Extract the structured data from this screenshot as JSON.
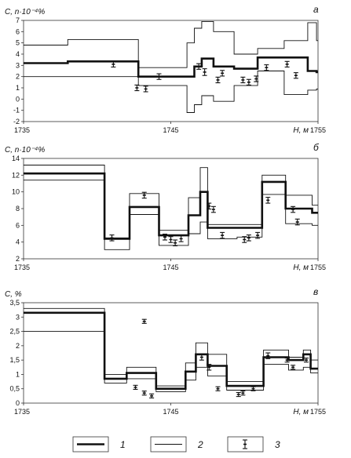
{
  "chart_data": [
    {
      "type": "line",
      "panel_label": "а",
      "ylabel": "C, n·10⁻⁴%",
      "xlabel": "H, м",
      "xlim": [
        1735,
        1755
      ],
      "ylim": [
        -2,
        7
      ],
      "x_ticks": [
        "1735",
        "1745",
        "1755"
      ],
      "y_ticks": [
        "-2",
        "-1",
        "0",
        "1",
        "2",
        "3",
        "4",
        "5",
        "6",
        "7"
      ],
      "series": [
        {
          "name": "1",
          "style": "thick",
          "x": [
            1735,
            1738,
            1738,
            1742.8,
            1742.8,
            1746.1,
            1746.1,
            1746.6,
            1746.6,
            1747.1,
            1747.1,
            1747.9,
            1747.9,
            1749.3,
            1749.3,
            1750.9,
            1750.9,
            1752.7,
            1752.7,
            1754.3,
            1754.3,
            1754.9,
            1754.9,
            1755
          ],
          "y": [
            3.2,
            3.2,
            3.35,
            3.35,
            2.0,
            2.0,
            2.0,
            2.0,
            2.9,
            2.9,
            3.6,
            3.6,
            2.9,
            2.9,
            2.7,
            2.7,
            3.7,
            3.7,
            3.7,
            3.7,
            2.5,
            2.5,
            2.4,
            2.4
          ]
        },
        {
          "name": "2",
          "style": "thin",
          "x": [
            1735,
            1738,
            1738,
            1742.8,
            1742.8,
            1746.1,
            1746.1,
            1746.6,
            1746.6,
            1747.1,
            1747.1,
            1747.9,
            1747.9,
            1749.3,
            1749.3,
            1750.9,
            1750.9,
            1752.7,
            1752.7,
            1754.3,
            1754.3,
            1754.9,
            1754.9,
            1755
          ],
          "y": [
            4.8,
            4.8,
            5.3,
            5.3,
            2.8,
            2.8,
            5.0,
            5.0,
            6.3,
            6.3,
            6.9,
            6.9,
            6.0,
            6.0,
            4.0,
            4.0,
            4.5,
            4.5,
            5.2,
            5.2,
            6.8,
            6.8,
            5.2,
            5.2
          ]
        },
        {
          "name": "2",
          "style": "thin",
          "x": [
            1735,
            1738,
            1738,
            1742.8,
            1742.8,
            1746.1,
            1746.1,
            1746.6,
            1746.6,
            1747.1,
            1747.1,
            1747.9,
            1747.9,
            1749.3,
            1749.3,
            1750.9,
            1750.9,
            1752.7,
            1752.7,
            1754.3,
            1754.3,
            1754.9,
            1754.9,
            1755
          ],
          "y": [
            2.0,
            2.0,
            2.0,
            2.0,
            1.2,
            1.2,
            -1.2,
            -1.2,
            -0.5,
            -0.5,
            0.3,
            0.3,
            -0.2,
            -0.2,
            1.2,
            1.2,
            2.5,
            2.5,
            0.4,
            0.4,
            0.8,
            0.8,
            0.9,
            0.9
          ]
        }
      ],
      "points": [
        {
          "x": 1741.1,
          "y": 3.1,
          "err": 0.25
        },
        {
          "x": 1742.7,
          "y": 1.0,
          "err": 0.25
        },
        {
          "x": 1743.3,
          "y": 0.9,
          "err": 0.25
        },
        {
          "x": 1744.2,
          "y": 2.0,
          "err": 0.25
        },
        {
          "x": 1746.9,
          "y": 2.9,
          "err": 0.25
        },
        {
          "x": 1747.3,
          "y": 2.4,
          "err": 0.3
        },
        {
          "x": 1748.2,
          "y": 1.7,
          "err": 0.25
        },
        {
          "x": 1748.5,
          "y": 2.3,
          "err": 0.25
        },
        {
          "x": 1749.9,
          "y": 1.7,
          "err": 0.25
        },
        {
          "x": 1750.3,
          "y": 1.5,
          "err": 0.25
        },
        {
          "x": 1750.8,
          "y": 1.8,
          "err": 0.25
        },
        {
          "x": 1751.5,
          "y": 2.8,
          "err": 0.25
        },
        {
          "x": 1752.9,
          "y": 3.1,
          "err": 0.25
        },
        {
          "x": 1753.5,
          "y": 2.1,
          "err": 0.25
        }
      ]
    },
    {
      "type": "line",
      "panel_label": "б",
      "ylabel": "C, n·10⁻⁴%",
      "xlabel": "H, м",
      "xlim": [
        1735,
        1755
      ],
      "ylim": [
        2,
        14
      ],
      "x_ticks": [
        "1735",
        "1745",
        "1755"
      ],
      "y_ticks": [
        "2",
        "4",
        "6",
        "8",
        "10",
        "12",
        "14"
      ],
      "series": [
        {
          "name": "1",
          "style": "thick",
          "x": [
            1735,
            1740.5,
            1740.5,
            1742.2,
            1742.2,
            1744.2,
            1744.2,
            1746.2,
            1746.2,
            1747.0,
            1747.0,
            1747.5,
            1747.5,
            1749.5,
            1749.5,
            1751.2,
            1751.2,
            1752.8,
            1752.8,
            1754.6,
            1754.6,
            1755
          ],
          "y": [
            12.2,
            12.2,
            4.4,
            4.4,
            8.2,
            8.2,
            4.8,
            4.8,
            7.2,
            7.2,
            10.0,
            10.0,
            5.7,
            5.7,
            5.7,
            5.7,
            11.2,
            11.2,
            8.0,
            8.0,
            7.5,
            7.5
          ]
        },
        {
          "name": "2",
          "style": "thin",
          "x": [
            1735,
            1740.5,
            1740.5,
            1742.2,
            1742.2,
            1744.2,
            1744.2,
            1746.2,
            1746.2,
            1747.0,
            1747.0,
            1747.5,
            1747.5,
            1749.5,
            1749.5,
            1751.2,
            1751.2,
            1752.8,
            1752.8,
            1754.6,
            1754.6,
            1755
          ],
          "y": [
            13.2,
            13.2,
            4.5,
            4.5,
            9.8,
            9.8,
            5.4,
            5.4,
            9.3,
            9.3,
            12.9,
            12.9,
            6.1,
            6.1,
            6.1,
            6.1,
            12.0,
            12.0,
            9.6,
            9.6,
            8.4,
            8.4
          ]
        },
        {
          "name": "2",
          "style": "thin",
          "x": [
            1735,
            1740.5,
            1740.5,
            1742.2,
            1742.2,
            1744.2,
            1744.2,
            1746.2,
            1746.2,
            1747.0,
            1747.0,
            1747.5,
            1747.5,
            1749.5,
            1749.5,
            1751.2,
            1751.2,
            1752.8,
            1752.8,
            1754.6,
            1754.6,
            1755
          ],
          "y": [
            11.4,
            11.4,
            3.1,
            3.1,
            7.3,
            7.3,
            3.6,
            3.6,
            5.0,
            5.0,
            6.4,
            6.4,
            4.4,
            4.4,
            4.6,
            4.6,
            9.7,
            9.7,
            6.2,
            6.2,
            6.0,
            6.0
          ]
        }
      ],
      "points": [
        {
          "x": 1741.0,
          "y": 4.5,
          "err": 0.35
        },
        {
          "x": 1743.2,
          "y": 9.6,
          "err": 0.35
        },
        {
          "x": 1744.6,
          "y": 4.6,
          "err": 0.35
        },
        {
          "x": 1745.0,
          "y": 4.3,
          "err": 0.35
        },
        {
          "x": 1745.3,
          "y": 3.9,
          "err": 0.35
        },
        {
          "x": 1745.7,
          "y": 4.4,
          "err": 0.35
        },
        {
          "x": 1747.6,
          "y": 8.3,
          "err": 0.35
        },
        {
          "x": 1747.9,
          "y": 7.9,
          "err": 0.35
        },
        {
          "x": 1748.5,
          "y": 4.8,
          "err": 0.35
        },
        {
          "x": 1750.0,
          "y": 4.3,
          "err": 0.35
        },
        {
          "x": 1750.3,
          "y": 4.5,
          "err": 0.35
        },
        {
          "x": 1750.9,
          "y": 4.8,
          "err": 0.35
        },
        {
          "x": 1751.6,
          "y": 9.0,
          "err": 0.35
        },
        {
          "x": 1753.3,
          "y": 7.9,
          "err": 0.35
        },
        {
          "x": 1753.6,
          "y": 6.4,
          "err": 0.35
        }
      ]
    },
    {
      "type": "line",
      "panel_label": "в",
      "ylabel": "C, %",
      "xlabel": "H, м",
      "xlim": [
        1735,
        1755
      ],
      "ylim": [
        0,
        3.5
      ],
      "x_ticks": [
        "1735",
        "1745",
        "1755"
      ],
      "y_ticks": [
        "0",
        "0,5",
        "1",
        "1,5",
        "2",
        "2,5",
        "3",
        "3,5"
      ],
      "series": [
        {
          "name": "1",
          "style": "thick",
          "x": [
            1735,
            1740.5,
            1740.5,
            1742.0,
            1742.0,
            1744.0,
            1744.0,
            1746.0,
            1746.0,
            1746.7,
            1746.7,
            1747.5,
            1747.5,
            1748.8,
            1748.8,
            1751.3,
            1751.3,
            1753.0,
            1753.0,
            1754.0,
            1754.0,
            1754.5,
            1754.5,
            1755
          ],
          "y": [
            3.15,
            3.15,
            0.85,
            0.85,
            1.05,
            1.05,
            0.5,
            0.5,
            1.1,
            1.1,
            1.7,
            1.7,
            1.3,
            1.3,
            0.6,
            0.6,
            1.6,
            1.6,
            1.5,
            1.5,
            1.7,
            1.7,
            1.2,
            1.2
          ]
        },
        {
          "name": "2",
          "style": "thin",
          "x": [
            1735,
            1740.5,
            1740.5,
            1742.0,
            1742.0,
            1744.0,
            1744.0,
            1746.0,
            1746.0,
            1746.7,
            1746.7,
            1747.5,
            1747.5,
            1748.8,
            1748.8,
            1751.3,
            1751.3,
            1753.0,
            1753.0,
            1754.0,
            1754.0,
            1754.5,
            1754.5,
            1755
          ],
          "y": [
            3.3,
            3.3,
            1.0,
            1.0,
            1.25,
            1.25,
            0.6,
            0.6,
            1.4,
            1.4,
            2.1,
            2.1,
            1.7,
            1.7,
            0.75,
            0.75,
            1.85,
            1.85,
            1.6,
            1.6,
            1.85,
            1.85,
            1.5,
            1.5
          ]
        },
        {
          "name": "2",
          "style": "thin",
          "x": [
            1735,
            1740.5,
            1740.5,
            1742.0,
            1742.0,
            1744.0,
            1744.0,
            1746.0,
            1746.0,
            1746.7,
            1746.7,
            1747.5,
            1747.5,
            1748.8,
            1748.8,
            1751.3,
            1751.3,
            1753.0,
            1753.0,
            1754.0,
            1754.0,
            1754.5,
            1754.5,
            1755
          ],
          "y": [
            2.5,
            2.5,
            0.7,
            0.7,
            0.85,
            0.85,
            0.4,
            0.4,
            0.8,
            0.8,
            1.25,
            1.25,
            0.95,
            0.95,
            0.45,
            0.45,
            1.35,
            1.35,
            1.15,
            1.15,
            1.25,
            1.25,
            1.05,
            1.05
          ]
        }
      ],
      "points": [
        {
          "x": 1743.2,
          "y": 2.85,
          "err": 0.07
        },
        {
          "x": 1742.6,
          "y": 0.55,
          "err": 0.07
        },
        {
          "x": 1743.2,
          "y": 0.35,
          "err": 0.07
        },
        {
          "x": 1743.7,
          "y": 0.25,
          "err": 0.07
        },
        {
          "x": 1747.1,
          "y": 1.6,
          "err": 0.1
        },
        {
          "x": 1747.6,
          "y": 1.25,
          "err": 0.1
        },
        {
          "x": 1748.2,
          "y": 0.5,
          "err": 0.07
        },
        {
          "x": 1749.6,
          "y": 0.3,
          "err": 0.07
        },
        {
          "x": 1749.9,
          "y": 0.35,
          "err": 0.07
        },
        {
          "x": 1750.6,
          "y": 0.5,
          "err": 0.07
        },
        {
          "x": 1751.6,
          "y": 1.65,
          "err": 0.1
        },
        {
          "x": 1752.9,
          "y": 1.5,
          "err": 0.07
        },
        {
          "x": 1753.3,
          "y": 1.25,
          "err": 0.07
        },
        {
          "x": 1754.2,
          "y": 1.5,
          "err": 0.07
        }
      ]
    }
  ],
  "legend": [
    {
      "label": "1",
      "style": "thick"
    },
    {
      "label": "2",
      "style": "thin"
    },
    {
      "label": "3",
      "style": "errorbar"
    }
  ]
}
